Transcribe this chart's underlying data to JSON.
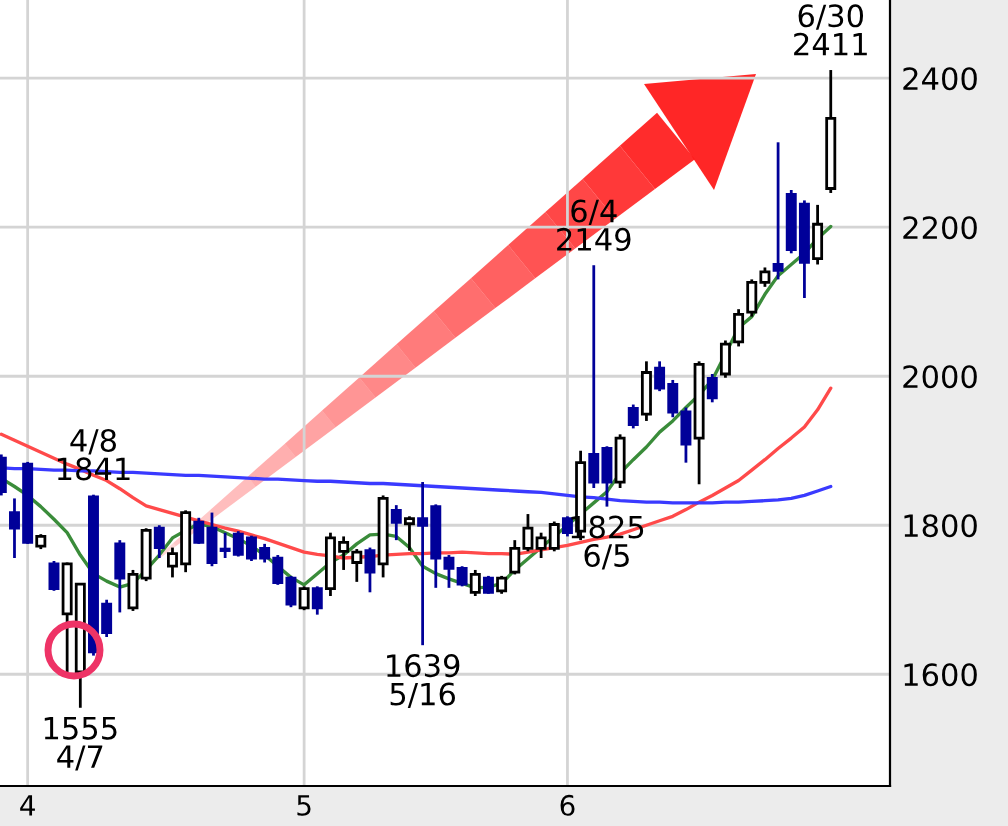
{
  "chart_data": {
    "type": "candlestick",
    "categories": [
      null,
      null,
      "4",
      null,
      null,
      null,
      null,
      null,
      null,
      null,
      null,
      null,
      null,
      null,
      null,
      null,
      null,
      null,
      null,
      null,
      null,
      null,
      null,
      "5",
      null,
      null,
      null,
      null,
      null,
      null,
      null,
      null,
      null,
      null,
      null,
      null,
      null,
      null,
      null,
      null,
      null,
      null,
      null,
      "6",
      null,
      null,
      null,
      null,
      null,
      null,
      null,
      null,
      null,
      null,
      null,
      null,
      null,
      null,
      null,
      null,
      null,
      null,
      null,
      null
    ],
    "series": [
      {
        "colors": [
          "#000099",
          "#000099",
          "#000099",
          "#ffffff",
          "#000099",
          "#ffffff",
          "#ffffff",
          "#000099",
          "#000099",
          "#000099",
          "#ffffff",
          "#ffffff",
          "#000099",
          "#ffffff",
          "#ffffff",
          "#000099",
          "#000099",
          "#000099",
          "#000099",
          "#000099",
          "#000099",
          "#000099",
          "#000099",
          "#ffffff",
          "#000099",
          "#ffffff",
          "#ffffff",
          "#ffffff",
          "#000099",
          "#ffffff",
          "#000099",
          "#ffffff",
          "#000099",
          "#000099",
          "#000099",
          "#000099",
          "#ffffff",
          "#000099",
          "#ffffff",
          "#ffffff",
          "#ffffff",
          "#ffffff",
          "#ffffff",
          "#000099",
          "#ffffff",
          "#000099",
          "#000099",
          "#ffffff",
          "#000099",
          "#ffffff",
          "#000099",
          "#000099",
          "#000099",
          "#ffffff",
          "#000099",
          "#ffffff",
          "#ffffff",
          "#ffffff",
          "#ffffff",
          "#000099",
          "#000099",
          "#000099",
          "#ffffff",
          "#ffffff"
        ],
        "ohlc": [
          [
            1890,
            1895,
            1840,
            1845
          ],
          [
            1817,
            1836,
            1756,
            1796
          ],
          [
            1882,
            1885,
            1775,
            1777
          ],
          [
            1772,
            1788,
            1768,
            1785
          ],
          [
            1748,
            1752,
            1712,
            1715
          ],
          [
            1681,
            1750,
            1603,
            1748
          ],
          [
            1603,
            1721,
            1555,
            1721
          ],
          [
            1838,
            1841,
            1625,
            1630
          ],
          [
            1694,
            1700,
            1650,
            1656
          ],
          [
            1775,
            1780,
            1683,
            1729
          ],
          [
            1689,
            1740,
            1685,
            1734
          ],
          [
            1729,
            1796,
            1725,
            1793
          ],
          [
            1796,
            1800,
            1756,
            1770
          ],
          [
            1745,
            1770,
            1730,
            1762
          ],
          [
            1748,
            1820,
            1737,
            1817
          ],
          [
            1804,
            1810,
            1775,
            1777
          ],
          [
            1796,
            1817,
            1745,
            1750
          ],
          [
            1768,
            1790,
            1756,
            1766
          ],
          [
            1788,
            1792,
            1758,
            1761
          ],
          [
            1783,
            1786,
            1752,
            1756
          ],
          [
            1769,
            1775,
            1750,
            1756
          ],
          [
            1756,
            1760,
            1720,
            1723
          ],
          [
            1729,
            1732,
            1690,
            1694
          ],
          [
            1689,
            1718,
            1686,
            1715
          ],
          [
            1715,
            1718,
            1680,
            1689
          ],
          [
            1715,
            1790,
            1705,
            1783
          ],
          [
            1765,
            1785,
            1740,
            1777
          ],
          [
            1750,
            1768,
            1724,
            1764
          ],
          [
            1766,
            1770,
            1710,
            1737
          ],
          [
            1748,
            1840,
            1730,
            1836
          ],
          [
            1820,
            1827,
            1780,
            1804
          ],
          [
            1802,
            1812,
            1766,
            1809
          ],
          [
            1809,
            1858,
            1639,
            1800
          ],
          [
            1825,
            1828,
            1716,
            1756
          ],
          [
            1756,
            1760,
            1716,
            1742
          ],
          [
            1742,
            1745,
            1718,
            1721
          ],
          [
            1710,
            1740,
            1705,
            1734
          ],
          [
            1729,
            1732,
            1708,
            1710
          ],
          [
            1712,
            1732,
            1708,
            1729
          ],
          [
            1737,
            1780,
            1734,
            1769
          ],
          [
            1769,
            1815,
            1765,
            1796
          ],
          [
            1769,
            1790,
            1756,
            1783
          ],
          [
            1769,
            1805,
            1765,
            1801
          ],
          [
            1809,
            1812,
            1785,
            1790
          ],
          [
            1792,
            1900,
            1780,
            1884
          ],
          [
            1895,
            2149,
            1850,
            1858
          ],
          [
            1903,
            1906,
            1825,
            1858
          ],
          [
            1858,
            1922,
            1850,
            1917
          ],
          [
            1957,
            1962,
            1930,
            1935
          ],
          [
            1949,
            2020,
            1940,
            2005
          ],
          [
            2011,
            2020,
            1980,
            1984
          ],
          [
            1989,
            1995,
            1945,
            1952
          ],
          [
            1952,
            1958,
            1884,
            1909
          ],
          [
            1917,
            2020,
            1855,
            2016
          ],
          [
            1997,
            2003,
            1965,
            1971
          ],
          [
            2003,
            2048,
            1998,
            2043
          ],
          [
            2046,
            2090,
            2040,
            2083
          ],
          [
            2086,
            2130,
            2080,
            2126
          ],
          [
            2126,
            2146,
            2120,
            2140
          ],
          [
            2150,
            2314,
            2130,
            2142
          ],
          [
            2244,
            2250,
            2165,
            2170
          ],
          [
            2231,
            2236,
            2105,
            2153
          ],
          [
            2158,
            2230,
            2150,
            2204
          ],
          [
            2252,
            2411,
            2246,
            2346
          ]
        ]
      },
      {
        "type": "line",
        "color": "#3a8c3a",
        "values": [
          1863,
          1852,
          1840,
          1825,
          1808,
          1790,
          1760,
          1735,
          1725,
          1717,
          1722,
          1740,
          1760,
          1783,
          1793,
          1802,
          1798,
          1790,
          1782,
          1772,
          1760,
          1745,
          1730,
          1720,
          1735,
          1750,
          1760,
          1775,
          1787,
          1788,
          1785,
          1770,
          1745,
          1735,
          1728,
          1722,
          1716,
          1717,
          1722,
          1740,
          1755,
          1770,
          1785,
          1800,
          1815,
          1830,
          1845,
          1870,
          1888,
          1905,
          1925,
          1940,
          1958,
          1975,
          1995,
          2030,
          2065,
          2080,
          2110,
          2135,
          2150,
          2165,
          2185,
          2201
        ]
      },
      {
        "type": "line",
        "color": "#ff4a4a",
        "values": [
          1922,
          1914,
          1906,
          1898,
          1890,
          1882,
          1875,
          1867,
          1860,
          1849,
          1837,
          1826,
          1821,
          1816,
          1811,
          1806,
          1801,
          1796,
          1792,
          1787,
          1782,
          1776,
          1770,
          1764,
          1761,
          1759,
          1756,
          1757,
          1758,
          1760,
          1761,
          1762,
          1762,
          1763,
          1763,
          1764,
          1763,
          1762,
          1762,
          1761,
          1764,
          1767,
          1770,
          1773,
          1777,
          1781,
          1784,
          1788,
          1794,
          1800,
          1806,
          1812,
          1821,
          1831,
          1840,
          1850,
          1860,
          1874,
          1888,
          1903,
          1917,
          1932,
          1955,
          1984
        ]
      },
      {
        "type": "line",
        "color": "#3a3aff",
        "values": [
          1877,
          1876,
          1876,
          1875,
          1874,
          1874,
          1873,
          1873,
          1872,
          1871,
          1871,
          1870,
          1869,
          1868,
          1867,
          1867,
          1866,
          1865,
          1864,
          1863,
          1862,
          1862,
          1861,
          1860,
          1859,
          1859,
          1858,
          1857,
          1856,
          1856,
          1855,
          1854,
          1853,
          1852,
          1851,
          1850,
          1849,
          1848,
          1847,
          1846,
          1845,
          1844,
          1842,
          1840,
          1838,
          1837,
          1835,
          1833,
          1832,
          1831,
          1831,
          1830,
          1830,
          1830,
          1830,
          1831,
          1831,
          1832,
          1833,
          1834,
          1836,
          1840,
          1846,
          1852
        ]
      }
    ],
    "ylim": [
      1450,
      2505
    ],
    "yticks": [
      1600,
      1800,
      2000,
      2200,
      2400
    ],
    "grid": true,
    "annotations": [
      {
        "text": "4/8\n1841",
        "y": 1841
      },
      {
        "text": "1555\n4/7",
        "y": 1555
      },
      {
        "text": "1639\n5/16",
        "y": 1639
      },
      {
        "text": "6/4\n2149",
        "y": 2149
      },
      {
        "text": "1825\n6/5",
        "y": 1825
      },
      {
        "text": "6/30\n2411",
        "y": 2411
      }
    ]
  }
}
